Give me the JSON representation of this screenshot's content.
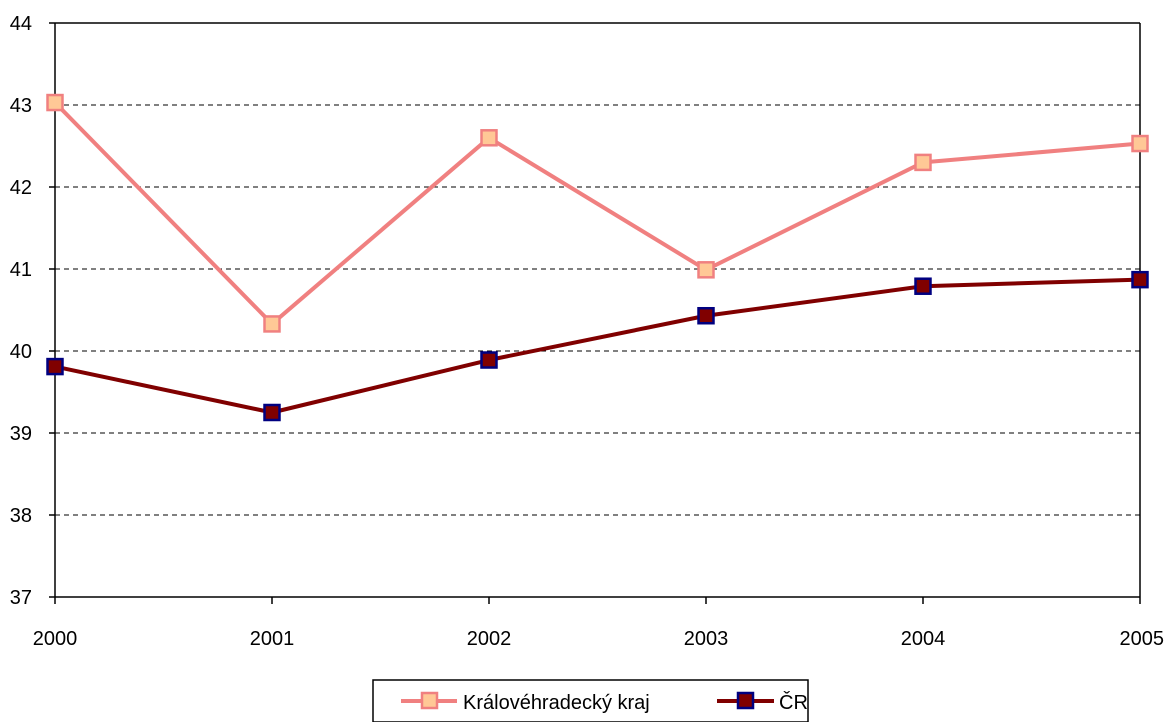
{
  "chart_data": {
    "type": "line",
    "title": "",
    "xlabel": "",
    "ylabel": "",
    "categories": [
      "2000",
      "2001",
      "2002",
      "2003",
      "2004",
      "2005"
    ],
    "ylim": [
      37,
      44
    ],
    "yticks": [
      "37",
      "38",
      "39",
      "40",
      "41",
      "42",
      "43",
      "44"
    ],
    "grid": "horizontal-dashed",
    "legend_position": "bottom-center",
    "series": [
      {
        "name": "Královéhradecký kraj",
        "values": [
          43.03,
          40.33,
          42.6,
          40.99,
          42.3,
          42.53
        ],
        "line_color": "#f08080",
        "marker_fill": "#ffc896",
        "marker_stroke": "#f08080"
      },
      {
        "name": "ČR",
        "values": [
          39.81,
          39.25,
          39.89,
          40.43,
          40.79,
          40.87
        ],
        "line_color": "#800000",
        "marker_fill": "#800000",
        "marker_stroke": "#000080"
      }
    ]
  }
}
